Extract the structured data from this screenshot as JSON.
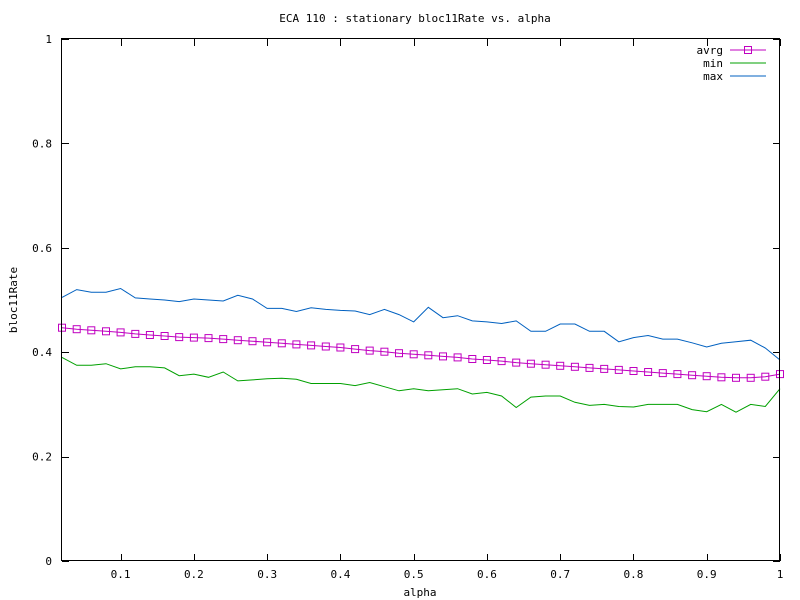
{
  "chart_data": {
    "type": "line",
    "title": "ECA 110 : stationary bloc11Rate vs. alpha",
    "xlabel": "alpha",
    "ylabel": "bloc11Rate",
    "xlim": [
      0.02,
      1.0
    ],
    "ylim": [
      0,
      1
    ],
    "x_ticks": [
      0.1,
      0.2,
      0.3,
      0.4,
      0.5,
      0.6,
      0.7,
      0.8,
      0.9,
      1
    ],
    "y_ticks": [
      0,
      0.2,
      0.4,
      0.6,
      0.8,
      1
    ],
    "grid": false,
    "legend_position": "top-right",
    "x": [
      0.02,
      0.04,
      0.06,
      0.08,
      0.1,
      0.12,
      0.14,
      0.16,
      0.18,
      0.2,
      0.22,
      0.24,
      0.26,
      0.28,
      0.3,
      0.32,
      0.34,
      0.36,
      0.38,
      0.4,
      0.42,
      0.44,
      0.46,
      0.48,
      0.5,
      0.52,
      0.54,
      0.56,
      0.58,
      0.6,
      0.62,
      0.64,
      0.66,
      0.68,
      0.7,
      0.72,
      0.74,
      0.76,
      0.78,
      0.8,
      0.82,
      0.84,
      0.86,
      0.88,
      0.9,
      0.92,
      0.94,
      0.96,
      0.98,
      1.0
    ],
    "series": [
      {
        "name": "avrg",
        "color": "#c000c0",
        "marker": "square",
        "values": [
          0.447,
          0.444,
          0.442,
          0.44,
          0.438,
          0.435,
          0.433,
          0.431,
          0.429,
          0.428,
          0.427,
          0.425,
          0.423,
          0.421,
          0.419,
          0.417,
          0.415,
          0.413,
          0.411,
          0.409,
          0.406,
          0.403,
          0.401,
          0.398,
          0.396,
          0.394,
          0.392,
          0.39,
          0.387,
          0.385,
          0.383,
          0.38,
          0.378,
          0.376,
          0.374,
          0.372,
          0.37,
          0.368,
          0.366,
          0.364,
          0.362,
          0.36,
          0.358,
          0.356,
          0.354,
          0.352,
          0.351,
          0.351,
          0.353,
          0.358
        ]
      },
      {
        "name": "min",
        "color": "#00a000",
        "marker": "none",
        "values": [
          0.39,
          0.375,
          0.375,
          0.378,
          0.368,
          0.372,
          0.372,
          0.37,
          0.355,
          0.358,
          0.352,
          0.362,
          0.345,
          0.347,
          0.349,
          0.35,
          0.348,
          0.34,
          0.34,
          0.34,
          0.336,
          0.342,
          0.334,
          0.326,
          0.33,
          0.326,
          0.328,
          0.33,
          0.32,
          0.323,
          0.316,
          0.294,
          0.314,
          0.316,
          0.316,
          0.304,
          0.298,
          0.3,
          0.296,
          0.295,
          0.3,
          0.3,
          0.3,
          0.29,
          0.286,
          0.3,
          0.285,
          0.3,
          0.296,
          0.33
        ]
      },
      {
        "name": "max",
        "color": "#0060c0",
        "marker": "none",
        "values": [
          0.505,
          0.52,
          0.515,
          0.515,
          0.522,
          0.504,
          0.502,
          0.5,
          0.497,
          0.502,
          0.5,
          0.498,
          0.509,
          0.502,
          0.484,
          0.484,
          0.478,
          0.485,
          0.482,
          0.48,
          0.479,
          0.472,
          0.482,
          0.472,
          0.458,
          0.486,
          0.466,
          0.47,
          0.46,
          0.458,
          0.455,
          0.46,
          0.44,
          0.44,
          0.454,
          0.454,
          0.44,
          0.44,
          0.42,
          0.428,
          0.432,
          0.425,
          0.425,
          0.418,
          0.41,
          0.417,
          0.42,
          0.423,
          0.408,
          0.385
        ]
      }
    ]
  }
}
